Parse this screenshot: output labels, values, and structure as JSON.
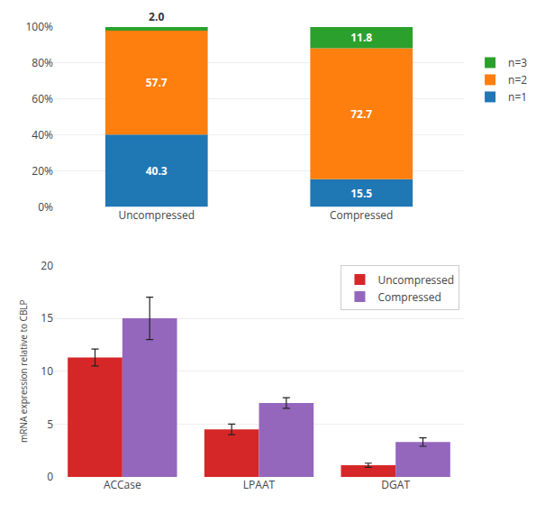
{
  "chart_data": [
    {
      "type": "bar",
      "stacked": true,
      "categories": [
        "Uncompressed",
        "Compressed"
      ],
      "series": [
        {
          "name": "n=1",
          "values": [
            40.3,
            15.5
          ],
          "value_labels": [
            "40.3",
            "15.5"
          ]
        },
        {
          "name": "n=2",
          "values": [
            57.7,
            72.7
          ],
          "value_labels": [
            "57.7",
            "72.7"
          ]
        },
        {
          "name": "n=3",
          "values": [
            2.0,
            11.8
          ],
          "value_labels": [
            "2.0",
            "11.8"
          ]
        }
      ],
      "ylim": [
        0,
        100
      ],
      "yticks": [
        {
          "value": 0,
          "label": "0%"
        },
        {
          "value": 20,
          "label": "20%"
        },
        {
          "value": 40,
          "label": "40%"
        },
        {
          "value": 60,
          "label": "60%"
        },
        {
          "value": 80,
          "label": "80%"
        },
        {
          "value": 100,
          "label": "100%"
        }
      ],
      "grid": true,
      "legend": "right",
      "data_labels": true
    },
    {
      "type": "bar",
      "categories": [
        "ACCase",
        "LPAAT",
        "DGAT"
      ],
      "ylabel": "mRNA expression relative to CBLP",
      "series": [
        {
          "name": "Uncompressed",
          "values": [
            11.3,
            4.5,
            1.1
          ],
          "errors": [
            0.8,
            0.5,
            0.2
          ]
        },
        {
          "name": "Compressed",
          "values": [
            15.0,
            7.0,
            3.3
          ],
          "errors": [
            2.0,
            0.5,
            0.4
          ]
        }
      ],
      "ylim": [
        0,
        20
      ],
      "yticks": [
        0,
        5,
        10,
        15,
        20
      ],
      "grid": true,
      "legend": "upper right"
    }
  ]
}
